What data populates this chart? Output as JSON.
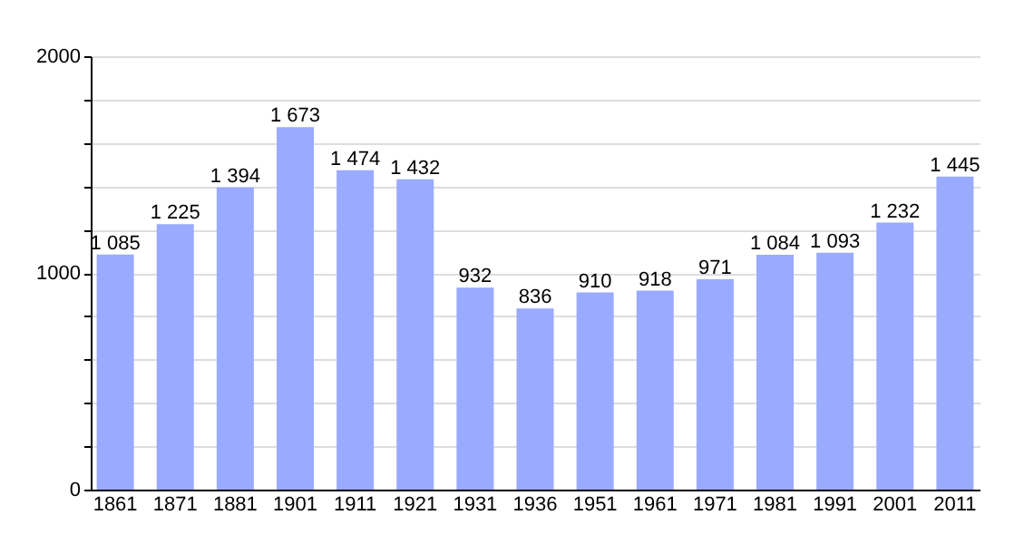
{
  "chart_data": {
    "type": "bar",
    "categories": [
      "1861",
      "1871",
      "1881",
      "1901",
      "1911",
      "1921",
      "1931",
      "1936",
      "1951",
      "1961",
      "1971",
      "1981",
      "1991",
      "2001",
      "2011"
    ],
    "values": [
      1085,
      1225,
      1394,
      1673,
      1474,
      1432,
      932,
      836,
      910,
      918,
      971,
      1084,
      1093,
      1232,
      1445
    ],
    "value_labels": [
      "1 085",
      "1 225",
      "1 394",
      "1 673",
      "1 474",
      "1 432",
      "932",
      "836",
      "910",
      "918",
      "971",
      "1 084",
      "1 093",
      "1 232",
      "1 445"
    ],
    "color": "#99aaff",
    "ylim": [
      0,
      2000
    ],
    "yticks": [
      0,
      {
        "value": 200,
        "label": null
      },
      {
        "value": 400,
        "label": null
      },
      {
        "value": 600,
        "label": null
      },
      {
        "value": 800,
        "label": null
      },
      1000,
      {
        "value": 1200,
        "label": null
      },
      {
        "value": 1400,
        "label": null
      },
      {
        "value": 1600,
        "label": null
      },
      {
        "value": 1800,
        "label": null
      },
      2000
    ],
    "grid": "y"
  }
}
